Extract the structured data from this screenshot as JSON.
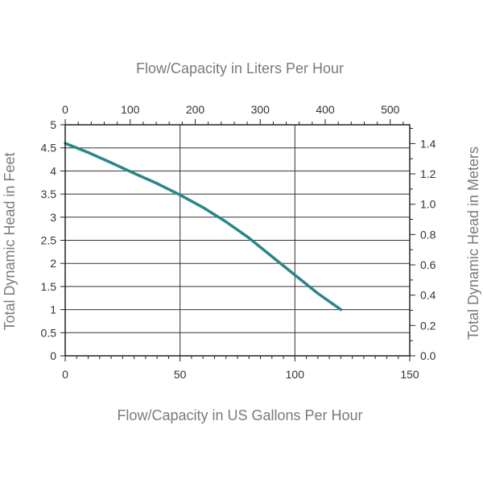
{
  "chart_data": {
    "type": "line",
    "title": "",
    "xlabel": "Flow/Capacity in US Gallons Per Hour",
    "x2label": "Flow/Capacity in Liters Per Hour",
    "ylabel": "Total Dynamic Head in Feet",
    "y2label": "Total Dynamic Head in Meters",
    "xlim": [
      0,
      150
    ],
    "ylim": [
      0,
      5
    ],
    "x2lim": [
      0,
      530
    ],
    "y2lim": [
      0,
      1.524
    ],
    "x_ticks": [
      "0",
      "50",
      "100",
      "150"
    ],
    "y_ticks": [
      "0",
      "0.5",
      "1",
      "1.5",
      "2",
      "2.5",
      "3",
      "3.5",
      "4",
      "4.5",
      "5"
    ],
    "x2_ticks": [
      "0",
      "100",
      "200",
      "300",
      "400",
      "500"
    ],
    "y2_ticks": [
      "0.0",
      "0.2",
      "0.4",
      "0.6",
      "0.8",
      "1.0",
      "1.2",
      "1.4"
    ],
    "grid": true,
    "line_color": "#2a8588",
    "series": [
      {
        "name": "",
        "x": [
          0,
          10,
          20,
          30,
          40,
          50,
          60,
          70,
          80,
          90,
          100,
          110,
          120
        ],
        "y": [
          4.6,
          4.4,
          4.18,
          3.95,
          3.73,
          3.48,
          3.21,
          2.9,
          2.55,
          2.15,
          1.75,
          1.35,
          1.0
        ]
      }
    ]
  }
}
